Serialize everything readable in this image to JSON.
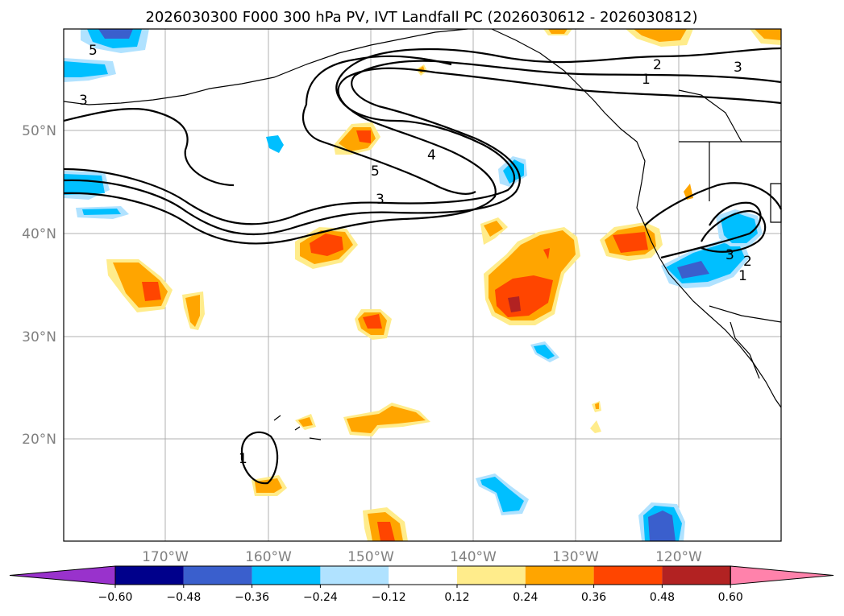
{
  "title": "2026030300 F000 300 hPa PV, IVT Landfall PC (2026030612 - 2026030812)",
  "lon_labels": [
    "170°W",
    "160°W",
    "150°W",
    "140°W",
    "130°W",
    "120°W"
  ],
  "lat_labels": [
    "50°N",
    "40°N",
    "30°N",
    "20°N"
  ],
  "colorbar": {
    "colors": [
      "#9932CC",
      "#00008B",
      "#3A5FCD",
      "#00BFFF",
      "#B0E2FF",
      "#FFFFFF",
      "#FFEC8B",
      "#FFA500",
      "#FF4500",
      "#B22222",
      "#FF82AB"
    ],
    "tick_labels": [
      "−0.60",
      "−0.48",
      "−0.36",
      "−0.24",
      "−0.12",
      "0.12",
      "0.24",
      "0.36",
      "0.48",
      "0.60"
    ]
  },
  "contour_labels": [
    "5",
    "3",
    "5",
    "4",
    "3",
    "2",
    "1",
    "3",
    "1",
    "3",
    "2",
    "1"
  ]
}
